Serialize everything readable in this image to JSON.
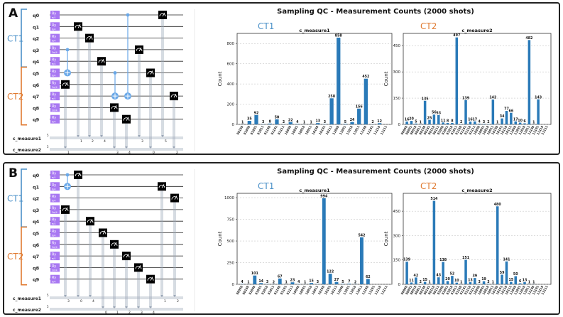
{
  "panels": [
    {
      "id": "A",
      "label": "A",
      "title": "Sampling QC - Measurement Counts (2000 shots)",
      "groups": [
        {
          "label": "CT1",
          "color": "#4a90c8"
        },
        {
          "label": "CT2",
          "color": "#e07a30"
        }
      ],
      "qubits": [
        "q0",
        "q1",
        "q2",
        "q3",
        "q4",
        "q5",
        "q6",
        "q7",
        "q8",
        "q9"
      ],
      "gate_labels": [
        "Ry π/4",
        "Ry π/4",
        "Ry π/4",
        "Ry 3π/4",
        "Ry π/4",
        "Ry π/4",
        "Ry 3π/4",
        "Ry π/4",
        "Ry 3π/4",
        "Ry π/4"
      ],
      "classical": [
        "c_measure1",
        "c_measure2"
      ],
      "creg_sizes": [
        "5",
        "5"
      ],
      "charts": [
        {
          "label": "CT1",
          "color": "#4a90c8",
          "chart_data": {
            "type": "bar",
            "title": "c_measure1",
            "ylabel": "Count",
            "ylim": [
              0,
              900
            ],
            "yticks": [
              0,
              200,
              400,
              600,
              800
            ],
            "categories": [
              "00100",
              "01000",
              "01001",
              "01011",
              "01100",
              "01101",
              "01111",
              "10000",
              "10001",
              "10010",
              "10011",
              "10100",
              "10101",
              "10111",
              "11000",
              "11001",
              "11010",
              "11011",
              "11100",
              "11101",
              "11110",
              "11111"
            ],
            "values": [
              1,
              35,
              92,
              3,
              8,
              50,
              2,
              22,
              4,
              1,
              1,
              13,
              3,
              258,
              858,
              5,
              24,
              156,
              452,
              2,
              12,
              null
            ]
          }
        },
        {
          "label": "CT2",
          "color": "#e07a30",
          "chart_data": {
            "type": "bar",
            "title": "c_measure2",
            "ylabel": "Count",
            "ylim": [
              0,
              520
            ],
            "yticks": [
              0,
              150,
              300,
              450
            ],
            "categories": [
              "00000",
              "00001",
              "00010",
              "00011",
              "00100",
              "00101",
              "00110",
              "00111",
              "01000",
              "01001",
              "01010",
              "01011",
              "01100",
              "01101",
              "01110",
              "01111",
              "10000",
              "10001",
              "10010",
              "10011",
              "10100",
              "10101",
              "10110",
              "10111",
              "11000",
              "11001",
              "11010",
              "11011",
              "11100",
              "11101",
              "11110",
              "11111"
            ],
            "values": [
              16,
              20,
              5,
              1,
              135,
              25,
              56,
              53,
              11,
              8,
              8,
              497,
              2,
              139,
              16,
              17,
              4,
              3,
              2,
              142,
              1,
              34,
              77,
              66,
              17,
              10,
              6,
              482,
              1,
              143,
              null,
              null
            ]
          }
        }
      ]
    },
    {
      "id": "B",
      "label": "B",
      "title": "Sampling QC - Measurement Counts (2000 shots)",
      "groups": [
        {
          "label": "CT1",
          "color": "#4a90c8"
        },
        {
          "label": "CT2",
          "color": "#e07a30"
        }
      ],
      "qubits": [
        "q0",
        "q1",
        "q2",
        "q3",
        "q4",
        "q5",
        "q6",
        "q7",
        "q8",
        "q9"
      ],
      "gate_labels": [
        "Ry π/4",
        "Ry π/4",
        "Ry π/4",
        "Ry 3π/4",
        "Ry π/4",
        "Ry π/4",
        "Ry 3π/4",
        "Ry π/4",
        "Ry 3π/4",
        "Ry π/4"
      ],
      "classical": [
        "c_measure1",
        "c_measure2"
      ],
      "creg_sizes": [
        "5",
        "5"
      ],
      "charts": [
        {
          "label": "CT1",
          "color": "#4a90c8",
          "chart_data": {
            "type": "bar",
            "title": "c_measure1",
            "ylabel": "Count",
            "ylim": [
              0,
              1050
            ],
            "yticks": [
              0,
              250,
              500,
              750,
              1000
            ],
            "categories": [
              "00000",
              "00100",
              "01000",
              "01001",
              "01010",
              "01011",
              "01100",
              "01101",
              "01111",
              "10000",
              "10001",
              "10010",
              "10011",
              "10100",
              "10101",
              "10111",
              "11000",
              "11001",
              "11010",
              "11011",
              "11100",
              "11101",
              "11110",
              "11111"
            ],
            "values": [
              4,
              1,
              101,
              14,
              3,
              2,
              67,
              1,
              23,
              4,
              1,
              15,
              3,
              994,
              122,
              27,
              5,
              7,
              2,
              542,
              62,
              null,
              null,
              null
            ]
          }
        },
        {
          "label": "CT2",
          "color": "#e07a30",
          "chart_data": {
            "type": "bar",
            "title": "c_measure2",
            "ylabel": "Count",
            "ylim": [
              0,
              560
            ],
            "yticks": [
              0,
              150,
              300,
              450
            ],
            "categories": [
              "00000",
              "00001",
              "00010",
              "00011",
              "00100",
              "00101",
              "00110",
              "00111",
              "01000",
              "01001",
              "01010",
              "01011",
              "01100",
              "01101",
              "01110",
              "01111",
              "10000",
              "10001",
              "10010",
              "10011",
              "10100",
              "10101",
              "10110",
              "10111",
              "11000",
              "11001",
              "11010",
              "11011",
              "11100",
              "11101",
              "11110",
              "11111"
            ],
            "values": [
              139,
              11,
              42,
              2,
              15,
              1,
              514,
              43,
              138,
              20,
              52,
              10,
              1,
              151,
              13,
              39,
              3,
              19,
              3,
              1,
              480,
              59,
              141,
              15,
              50,
              6,
              13,
              1,
              1,
              null,
              null,
              null
            ]
          }
        }
      ]
    }
  ],
  "icons": {
    "measure": "measure-meter-icon",
    "target": "cnot-target-icon",
    "control": "control-dot-icon"
  },
  "colors": {
    "gate": "#a877f2",
    "bar": "#2a7ab8",
    "wire": "#222222",
    "cwire": "#9aa6b6",
    "frame": "#222222"
  }
}
